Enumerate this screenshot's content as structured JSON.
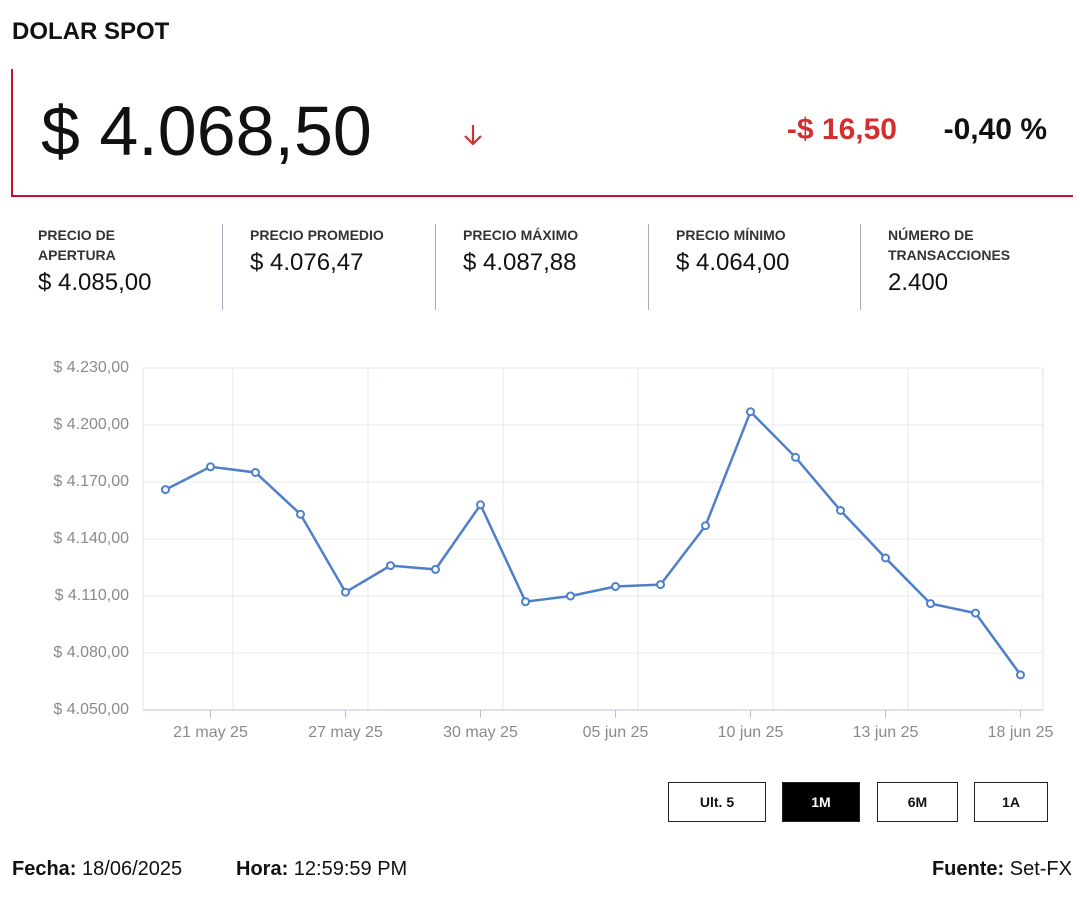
{
  "header": {
    "title": "DOLAR SPOT",
    "price": "$ 4.068,50",
    "change": "-$ 16,50",
    "change_pct": "-0,40 %"
  },
  "stats": [
    {
      "label": "PRECIO DE APERTURA",
      "value": "$ 4.085,00"
    },
    {
      "label": "PRECIO PROMEDIO",
      "value": "$ 4.076,47"
    },
    {
      "label": "PRECIO MÁXIMO",
      "value": "$ 4.087,88"
    },
    {
      "label": "PRECIO MÍNIMO",
      "value": "$ 4.064,00"
    },
    {
      "label": "NÚMERO DE TRANSACCIONES",
      "value": "2.400"
    }
  ],
  "chart_data": {
    "type": "line",
    "categories": [
      null,
      "21 may 25",
      null,
      null,
      "27 may 25",
      null,
      null,
      "30 may 25",
      null,
      null,
      "05 jun 25",
      null,
      null,
      "10 jun 25",
      null,
      null,
      "13 jun 25",
      null,
      null,
      "18 jun 25"
    ],
    "series": [
      {
        "color": "#4f7fc9",
        "values": [
          4166,
          4178,
          4175,
          4153,
          4112,
          4126,
          4124,
          4158,
          4107,
          4110,
          4115,
          4116,
          4147,
          4207,
          4183,
          4155,
          4130,
          4106,
          4101,
          4068.5
        ]
      }
    ],
    "ylim": [
      4050,
      4230
    ],
    "yticks": [
      {
        "value": 4050,
        "label": "$ 4.050,00"
      },
      {
        "value": 4080,
        "label": "$ 4.080,00"
      },
      {
        "value": 4110,
        "label": "$ 4.110,00"
      },
      {
        "value": 4140,
        "label": "$ 4.140,00"
      },
      {
        "value": 4170,
        "label": "$ 4.170,00"
      },
      {
        "value": 4200,
        "label": "$ 4.200,00"
      },
      {
        "value": 4230,
        "label": "$ 4.230,00"
      }
    ],
    "grid": true
  },
  "range_buttons": {
    "options": [
      "Ult. 5",
      "1M",
      "6M",
      "1A"
    ],
    "active": 1
  },
  "footer": {
    "date_label": "Fecha:",
    "date": "18/06/2025",
    "time_label": "Hora:",
    "time": "12:59:59 PM",
    "source_label": "Fuente:",
    "source": "Set-FX"
  }
}
